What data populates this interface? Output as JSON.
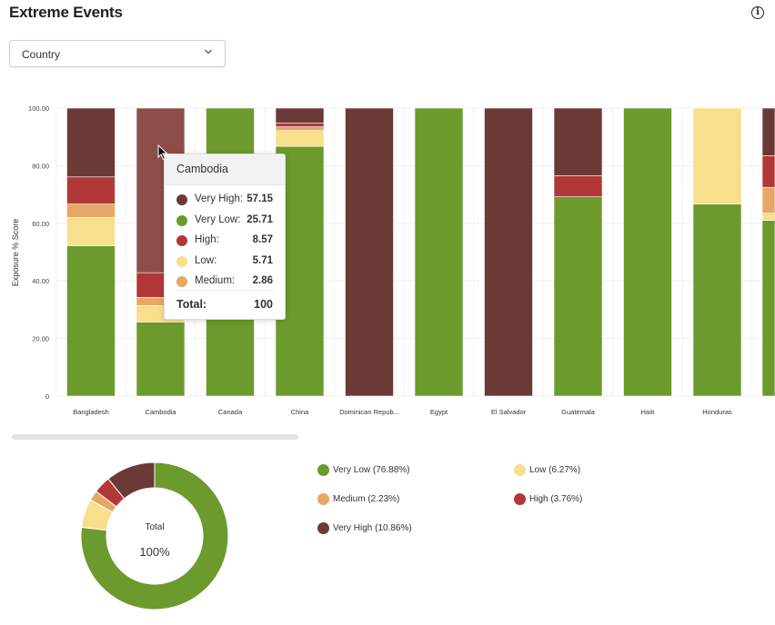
{
  "header": {
    "title": "Extreme Events",
    "info_icon": "info-icon"
  },
  "filter": {
    "selected": "Country",
    "icon": "chevron-down-icon"
  },
  "colors": {
    "Very High": "#6b3a37",
    "Very Low": "#6c9a2d",
    "High": "#b23837",
    "Low": "#f7df8b",
    "Medium": "#e8a766"
  },
  "chart_data": [
    {
      "type": "bar",
      "stacked": true,
      "ylabel": "Exposure % Score",
      "ylim": [
        0,
        100
      ],
      "yticks": [
        "0",
        "20.00",
        "40.00",
        "60.00",
        "80.00",
        "100.00"
      ],
      "categories": [
        "Bangladesh",
        "Cambodia",
        "Canada",
        "China",
        "Dominican Repub...",
        "Egypt",
        "El Salvador",
        "Guatemala",
        "Haiti",
        "Honduras"
      ],
      "series": [
        {
          "name": "Very Low",
          "values": [
            52.2,
            25.71,
            100,
            86.7,
            0,
            100,
            0,
            69.2,
            100,
            66.7
          ]
        },
        {
          "name": "Low",
          "values": [
            9.8,
            5.71,
            0,
            5.5,
            0,
            0,
            0,
            0,
            0,
            33.3
          ]
        },
        {
          "name": "Medium",
          "values": [
            4.7,
            2.86,
            0,
            1.3,
            0,
            0,
            0,
            0,
            0,
            0
          ]
        },
        {
          "name": "High",
          "values": [
            9.4,
            8.57,
            0,
            1.3,
            0,
            0,
            0,
            7.3,
            0,
            0
          ]
        },
        {
          "name": "Very High",
          "values": [
            23.9,
            57.15,
            0,
            5.2,
            100,
            0,
            100,
            23.5,
            0,
            0
          ]
        }
      ],
      "grid": true,
      "highlighted": "Cambodia"
    },
    {
      "type": "pie",
      "donut": true,
      "center_label": "Total",
      "center_value": "100%",
      "slices": [
        {
          "name": "Very Low",
          "value": 76.88
        },
        {
          "name": "Low",
          "value": 6.27
        },
        {
          "name": "Medium",
          "value": 2.23
        },
        {
          "name": "High",
          "value": 3.76
        },
        {
          "name": "Very High",
          "value": 10.86
        }
      ],
      "legend": [
        {
          "key": "Very Low",
          "text": "Very Low (76.88%)"
        },
        {
          "key": "Low",
          "text": "Low (6.27%)"
        },
        {
          "key": "Medium",
          "text": "Medium (2.23%)"
        },
        {
          "key": "High",
          "text": "High (3.76%)"
        },
        {
          "key": "Very High",
          "text": "Very High (10.86%)"
        }
      ]
    }
  ],
  "tooltip": {
    "title": "Cambodia",
    "rows": [
      {
        "key": "Very High",
        "label": "Very High:",
        "value": "57.15"
      },
      {
        "key": "Very Low",
        "label": "Very Low:",
        "value": "25.71"
      },
      {
        "key": "High",
        "label": "High:",
        "value": "8.57"
      },
      {
        "key": "Low",
        "label": "Low:",
        "value": "5.71"
      },
      {
        "key": "Medium",
        "label": "Medium:",
        "value": "2.86"
      }
    ],
    "total_label": "Total:",
    "total_value": "100"
  }
}
